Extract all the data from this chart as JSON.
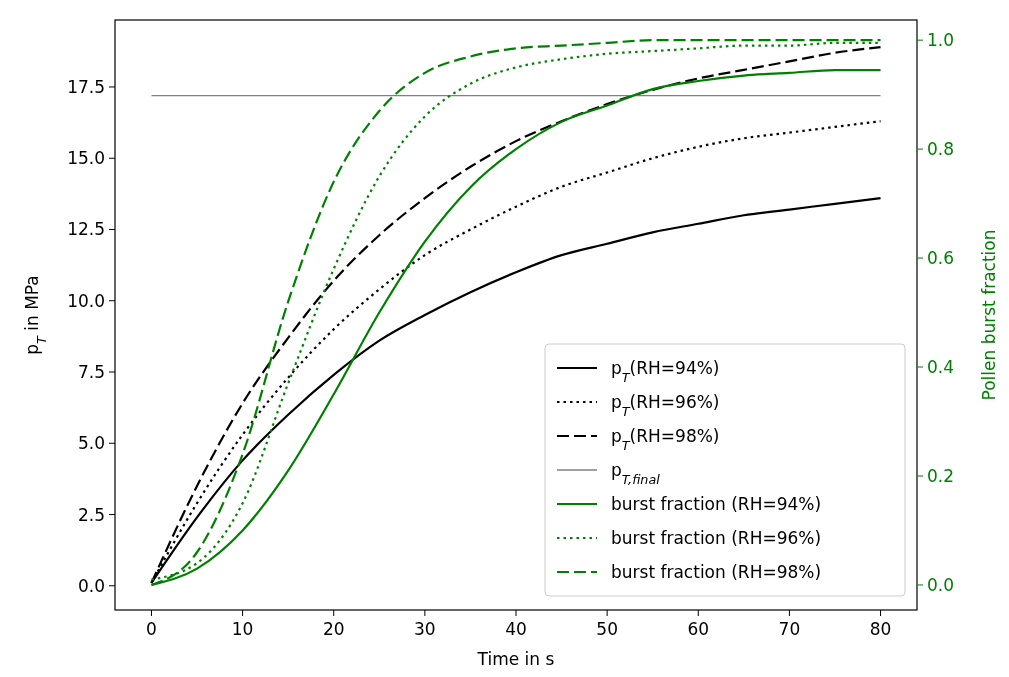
{
  "chart_data": {
    "type": "line",
    "xlabel": "Time in s",
    "ylabel": "p$_{T}$ in MPa",
    "y2label": "Pollen burst fraction",
    "x": [
      0,
      5,
      10,
      15,
      20,
      25,
      30,
      35,
      40,
      45,
      50,
      55,
      60,
      65,
      70,
      75,
      80
    ],
    "xlim": [
      -4,
      84
    ],
    "xticks": [
      0,
      10,
      20,
      30,
      40,
      50,
      60,
      70,
      80
    ],
    "ylim": [
      -0.85,
      19.85
    ],
    "yticks": [
      {
        "value": 0,
        "label": "0.0"
      },
      {
        "value": 2.5,
        "label": "2.5"
      },
      {
        "value": 5,
        "label": "5.0"
      },
      {
        "value": 7.5,
        "label": "7.5"
      },
      {
        "value": 10,
        "label": "10.0"
      },
      {
        "value": 12.5,
        "label": "12.5"
      },
      {
        "value": 15,
        "label": "15.0"
      },
      {
        "value": 17.5,
        "label": "17.5"
      }
    ],
    "y2lim": [
      -0.046,
      1.037
    ],
    "y2ticks": [
      {
        "value": 0,
        "label": "0.0"
      },
      {
        "value": 0.2,
        "label": "0.2"
      },
      {
        "value": 0.4,
        "label": "0.4"
      },
      {
        "value": 0.6,
        "label": "0.6"
      },
      {
        "value": 0.8,
        "label": "0.8"
      },
      {
        "value": 1,
        "label": "1.0"
      }
    ],
    "series": [
      {
        "name": "p$_{T}$(RH=94%)",
        "color": "#000000",
        "line_style": "solid",
        "values": [
          0.1,
          2.4,
          4.4,
          6.0,
          7.4,
          8.6,
          9.5,
          10.3,
          11.0,
          11.6,
          12.0,
          12.4,
          12.7,
          13.0,
          13.2,
          13.4,
          13.6
        ]
      },
      {
        "name": "p$_{T}$(RH=96%)",
        "color": "#000000",
        "line_style": "dotted",
        "values": [
          0.1,
          2.9,
          5.3,
          7.3,
          9.0,
          10.4,
          11.6,
          12.5,
          13.3,
          14.0,
          14.5,
          15.0,
          15.4,
          15.7,
          15.9,
          16.1,
          16.3
        ]
      },
      {
        "name": "p$_{T}$(RH=98%)",
        "color": "#000000",
        "line_style": "dashed",
        "values": [
          0.1,
          3.5,
          6.4,
          8.7,
          10.7,
          12.3,
          13.6,
          14.7,
          15.6,
          16.3,
          16.9,
          17.4,
          17.8,
          18.1,
          18.4,
          18.7,
          18.9
        ]
      },
      {
        "name": "p$_{T,final}$",
        "color": "#808080",
        "line_style": "solid",
        "x": [
          0,
          80
        ],
        "values": [
          17.2,
          17.2
        ]
      },
      {
        "name": "burst fraction (RH=94%)",
        "color": "#008000",
        "line_style": "solid",
        "axis": "y2",
        "values": [
          0.0,
          0.03,
          0.1,
          0.21,
          0.35,
          0.5,
          0.63,
          0.73,
          0.8,
          0.85,
          0.88,
          0.91,
          0.925,
          0.935,
          0.94,
          0.945,
          0.945
        ]
      },
      {
        "name": "burst fraction (RH=96%)",
        "color": "#008000",
        "line_style": "dotted",
        "axis": "y2",
        "values": [
          0.01,
          0.04,
          0.15,
          0.37,
          0.58,
          0.75,
          0.86,
          0.92,
          0.95,
          0.965,
          0.975,
          0.98,
          0.985,
          0.99,
          0.99,
          0.995,
          0.995
        ]
      },
      {
        "name": "burst fraction (RH=98%)",
        "color": "#008000",
        "line_style": "dashed",
        "axis": "y2",
        "values": [
          0.0,
          0.06,
          0.24,
          0.52,
          0.74,
          0.87,
          0.94,
          0.97,
          0.985,
          0.99,
          0.995,
          1.0,
          1.0,
          1.0,
          1.0,
          1.0,
          1.0
        ]
      }
    ],
    "legend": "bottom right",
    "grid": false
  }
}
